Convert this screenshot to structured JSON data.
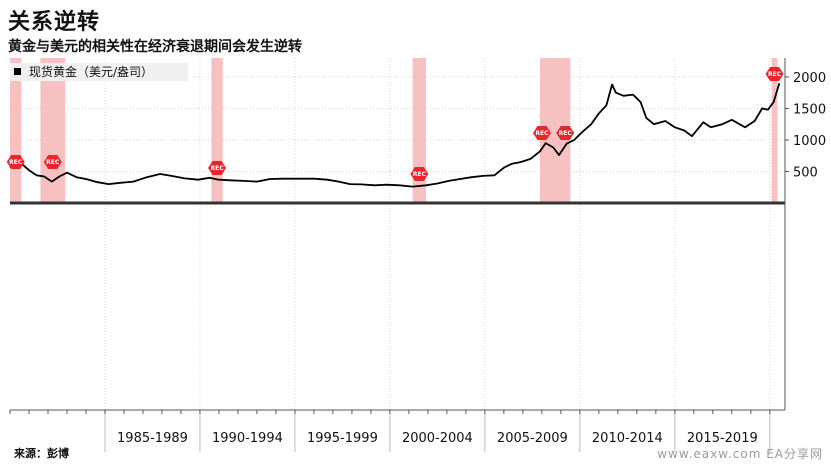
{
  "header": {
    "title": "关系逆转",
    "subtitle": "黄金与美元的相关性在经济衰退期间会发生逆转"
  },
  "footer": {
    "source": "来源：彭博",
    "watermark": "www.eaxw.com  EA分享网"
  },
  "colors": {
    "line": "#000000",
    "recession_band": "#f6b6b6",
    "recession_marker": "#e8262c",
    "axis": "#555555"
  },
  "chart_data": {
    "type": "line",
    "title": "",
    "legend": {
      "label": "现货黄金（美元/盎司）",
      "placement": "top-left"
    },
    "ylim": [
      0,
      2300
    ],
    "yticks": [
      500,
      1000,
      1500,
      2000
    ],
    "xlim": [
      1980.0,
      2020.8
    ],
    "x_period_labels": [
      "1985-1989",
      "1990-1994",
      "1995-1999",
      "2000-2004",
      "2005-2009",
      "2010-2014",
      "2015-2019"
    ],
    "x_period_boundaries": [
      1985,
      1990,
      1995,
      2000,
      2005,
      2010,
      2015,
      2020
    ],
    "recessions": [
      {
        "start": 1980.0,
        "end": 1980.6,
        "label": "REC"
      },
      {
        "start": 1981.6,
        "end": 1982.9,
        "label": "REC"
      },
      {
        "start": 1990.6,
        "end": 1991.2,
        "label": "REC"
      },
      {
        "start": 2001.2,
        "end": 2001.9,
        "label": "REC"
      },
      {
        "start": 2007.9,
        "end": 2009.5,
        "label": "REC"
      },
      {
        "start": 2020.1,
        "end": 2020.4,
        "label": "REC"
      }
    ],
    "series": [
      {
        "name": "现货黄金（美元/盎司）",
        "x": [
          1980.0,
          1980.3,
          1980.7,
          1981.0,
          1981.4,
          1981.8,
          1982.2,
          1982.6,
          1983.0,
          1983.5,
          1984.0,
          1984.6,
          1985.2,
          1985.8,
          1986.5,
          1987.2,
          1987.9,
          1988.5,
          1989.2,
          1989.9,
          1990.5,
          1991.0,
          1991.6,
          1992.3,
          1993.0,
          1993.7,
          1994.4,
          1995.2,
          1996.0,
          1996.7,
          1997.3,
          1997.9,
          1998.5,
          1999.2,
          1999.8,
          2000.5,
          2001.2,
          2001.9,
          2002.5,
          2003.1,
          2003.7,
          2004.3,
          2004.9,
          2005.5,
          2006.0,
          2006.4,
          2006.9,
          2007.4,
          2007.9,
          2008.2,
          2008.6,
          2008.9,
          2009.3,
          2009.7,
          2010.1,
          2010.6,
          2011.0,
          2011.4,
          2011.7,
          2011.9,
          2012.3,
          2012.8,
          2013.2,
          2013.5,
          2013.9,
          2014.5,
          2015.0,
          2015.5,
          2015.9,
          2016.5,
          2016.9,
          2017.5,
          2018.0,
          2018.7,
          2019.2,
          2019.6,
          2019.9,
          2020.2,
          2020.5
        ],
        "values": [
          560,
          660,
          600,
          520,
          440,
          420,
          340,
          420,
          480,
          410,
          380,
          330,
          300,
          320,
          340,
          410,
          460,
          430,
          390,
          370,
          400,
          370,
          360,
          350,
          340,
          380,
          385,
          385,
          385,
          370,
          340,
          300,
          295,
          280,
          290,
          280,
          260,
          280,
          310,
          350,
          380,
          410,
          430,
          440,
          560,
          620,
          650,
          700,
          820,
          950,
          880,
          760,
          940,
          1000,
          1120,
          1250,
          1420,
          1550,
          1880,
          1750,
          1700,
          1720,
          1600,
          1350,
          1250,
          1300,
          1200,
          1150,
          1060,
          1280,
          1200,
          1250,
          1320,
          1200,
          1300,
          1500,
          1480,
          1600,
          1900
        ]
      }
    ]
  }
}
